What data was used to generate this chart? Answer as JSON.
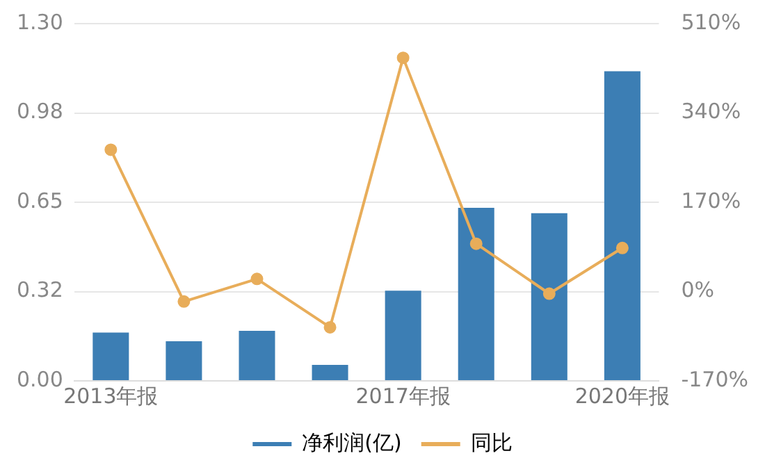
{
  "chart_data": {
    "type": "bar",
    "categories": [
      "2013年报",
      null,
      null,
      null,
      "2017年报",
      null,
      null,
      "2020年报"
    ],
    "series": [
      {
        "name": "净利润(亿)",
        "color": "#3c7eb4",
        "values": [
          0.176,
          0.144,
          0.182,
          0.058,
          0.328,
          0.63,
          0.61,
          1.127
        ]
      },
      {
        "name": "同比",
        "type": "line",
        "axis": "y2",
        "color": "#e8ad5a",
        "values": [
          270,
          -19,
          24,
          -68,
          445,
          91,
          -4,
          83
        ]
      }
    ],
    "ylim": [
      0,
      1.3
    ],
    "yticks": [
      {
        "value": 0,
        "label": "0.00"
      },
      {
        "value": 0.325,
        "label": "0.32"
      },
      {
        "value": 0.65,
        "label": "0.65"
      },
      {
        "value": 0.975,
        "label": "0.98"
      },
      {
        "value": 1.3,
        "label": "1.30"
      }
    ],
    "y2lim": [
      -170,
      510
    ],
    "y2ticks": [
      {
        "value": -170,
        "label": "-170%"
      },
      {
        "value": 0,
        "label": "0%"
      },
      {
        "value": 170,
        "label": "170%"
      },
      {
        "value": 340,
        "label": "340%"
      },
      {
        "value": 510,
        "label": "510%"
      }
    ],
    "grid": "y",
    "legend": "bottom",
    "marker": "circle",
    "line_style": "solid"
  }
}
